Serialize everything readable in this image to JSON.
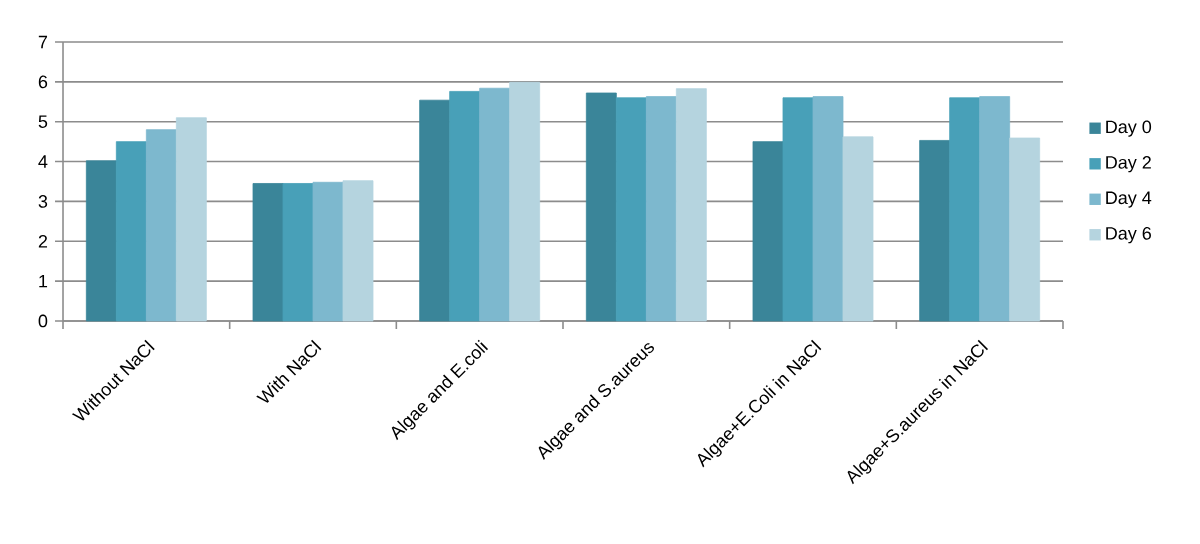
{
  "chart_data": {
    "type": "bar",
    "categories": [
      "Without NaCl",
      "With NaCl",
      "Algae and E.coli",
      "Algae and S.aureus",
      "Algae+E.Coli in NaCl",
      "Algae+S.aureus in NaCl"
    ],
    "series": [
      {
        "name": "Day 0",
        "color": "#3a8599",
        "values": [
          4.02,
          3.45,
          5.54,
          5.72,
          4.5,
          4.53
        ]
      },
      {
        "name": "Day 2",
        "color": "#48a0b8",
        "values": [
          4.5,
          3.45,
          5.76,
          5.6,
          5.6,
          5.6
        ]
      },
      {
        "name": "Day 4",
        "color": "#7db8ce",
        "values": [
          4.8,
          3.48,
          5.84,
          5.63,
          5.63,
          5.63
        ]
      },
      {
        "name": "Day 6",
        "color": "#b5d4df",
        "values": [
          5.1,
          3.52,
          5.99,
          5.83,
          4.62,
          4.59
        ]
      }
    ],
    "ylim": [
      0,
      7
    ],
    "yticks": [
      0,
      1,
      2,
      3,
      4,
      5,
      6,
      7
    ],
    "grid": "y",
    "legend": "right"
  }
}
